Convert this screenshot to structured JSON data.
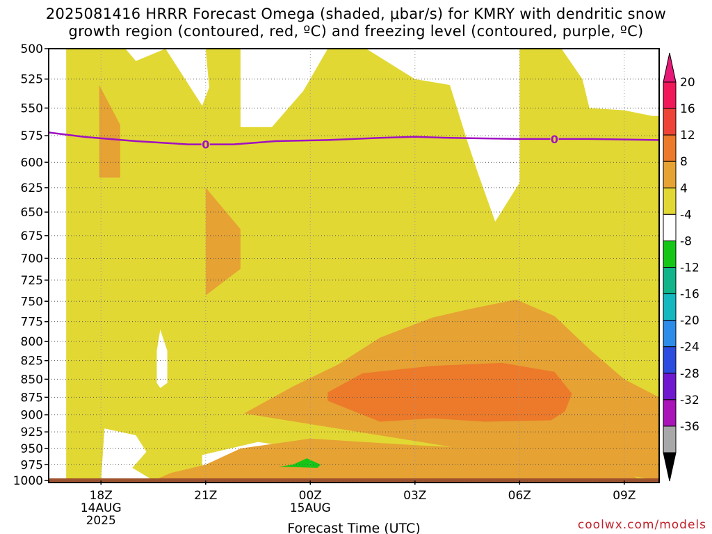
{
  "title_line1": "2025081416 HRRR Forecast Omega (shaded, μbar/s) for KMRY with dendritic snow",
  "title_line2": "growth region (contoured, red, ºC) and freezing level (contoured, purple, ºC)",
  "footer": "coolwx.com/models",
  "chart_data": {
    "type": "heatmap",
    "xlabel": "Forecast Time (UTC)",
    "ylabel": "",
    "x_ticks": [
      {
        "label": "18Z",
        "sub1": "14AUG",
        "sub2": "2025",
        "hour": 2
      },
      {
        "label": "21Z",
        "sub1": "",
        "sub2": "",
        "hour": 5
      },
      {
        "label": "00Z",
        "sub1": "15AUG",
        "sub2": "",
        "hour": 8
      },
      {
        "label": "03Z",
        "sub1": "",
        "sub2": "",
        "hour": 11
      },
      {
        "label": "06Z",
        "sub1": "",
        "sub2": "",
        "hour": 14
      },
      {
        "label": "09Z",
        "sub1": "",
        "sub2": "",
        "hour": 17
      }
    ],
    "x_range_hours": [
      0.5,
      18
    ],
    "y_ticks": [
      500,
      525,
      550,
      575,
      600,
      625,
      650,
      675,
      700,
      725,
      750,
      775,
      800,
      825,
      850,
      875,
      900,
      925,
      950,
      975,
      1000
    ],
    "y_range_hPa": [
      500,
      1000
    ],
    "y_scale": "log-pressure",
    "colorbar": {
      "labels": [
        "20",
        "16",
        "12",
        "8",
        "4",
        "-4",
        "-8",
        "-12",
        "-16",
        "-20",
        "-24",
        "-28",
        "-32",
        "-36"
      ],
      "colors": [
        "#f01858",
        "#ee4438",
        "#ec7a2a",
        "#e6a233",
        "#e2d834",
        "#ffffff",
        "#16c616",
        "#12b48a",
        "#16b8c0",
        "#2c8ce8",
        "#2c4ce0",
        "#7018d0",
        "#a814b8",
        "#a8a8a8"
      ],
      "top_arrow_color": "#e81878",
      "bottom_arrow_color": "#000000"
    },
    "freezing_level": {
      "label": "0",
      "points": [
        [
          0.5,
          572
        ],
        [
          1.5,
          576
        ],
        [
          3.0,
          580
        ],
        [
          4.5,
          583
        ],
        [
          5.0,
          583
        ],
        [
          5.8,
          583
        ],
        [
          7.0,
          580
        ],
        [
          8.5,
          579
        ],
        [
          10.0,
          577
        ],
        [
          11.0,
          576
        ],
        [
          12.0,
          577
        ],
        [
          14.0,
          578
        ],
        [
          16.0,
          578
        ],
        [
          18.0,
          579
        ]
      ],
      "label_positions": [
        [
          5.0,
          583
        ],
        [
          15.0,
          578
        ]
      ],
      "color": "#a010c0"
    },
    "shaded_regions": [
      {
        "level": "4 to 8",
        "color": "#e2d834",
        "polygon": [
          [
            1.0,
            500
          ],
          [
            18.0,
            500
          ],
          [
            18.0,
            1000
          ],
          [
            1.0,
            1000
          ]
        ]
      },
      {
        "level": "-4 to 4",
        "color": "#ffffff",
        "polygon": [
          [
            0.5,
            500
          ],
          [
            1.0,
            500
          ],
          [
            1.0,
            1000
          ],
          [
            0.5,
            1000
          ]
        ]
      },
      {
        "level": "-4 to 4",
        "color": "#ffffff",
        "polygon": [
          [
            2.7,
            500
          ],
          [
            3.0,
            510
          ],
          [
            3.85,
            500
          ]
        ]
      },
      {
        "level": "-4 to 4",
        "color": "#ffffff",
        "polygon": [
          [
            3.85,
            500
          ],
          [
            4.9,
            548
          ],
          [
            5.1,
            532
          ],
          [
            5.0,
            500
          ]
        ]
      },
      {
        "level": "-4 to 4",
        "color": "#ffffff",
        "polygon": [
          [
            6.0,
            567
          ],
          [
            6.9,
            567
          ],
          [
            7.8,
            535
          ],
          [
            8.5,
            500
          ],
          [
            6.0,
            500
          ]
        ]
      },
      {
        "level": "-4 to 4",
        "color": "#ffffff",
        "polygon": [
          [
            9.6,
            500
          ],
          [
            11.0,
            525
          ],
          [
            12.0,
            530
          ],
          [
            12.5,
            580
          ],
          [
            12.8,
            610
          ],
          [
            13.3,
            660
          ],
          [
            14.0,
            620
          ],
          [
            14.0,
            500
          ]
        ]
      },
      {
        "level": "-4 to 4",
        "color": "#ffffff",
        "polygon": [
          [
            15.2,
            500
          ],
          [
            15.8,
            525
          ],
          [
            16.0,
            550
          ],
          [
            17.0,
            552
          ],
          [
            17.8,
            557
          ],
          [
            18.0,
            557
          ],
          [
            18.0,
            500
          ]
        ]
      },
      {
        "level": "-4 to 4",
        "color": "#ffffff",
        "polygon": [
          [
            3.7,
            785
          ],
          [
            3.9,
            812
          ],
          [
            3.9,
            855
          ],
          [
            3.7,
            862
          ],
          [
            3.6,
            855
          ],
          [
            3.6,
            812
          ]
        ]
      },
      {
        "level": "-4 to 4",
        "color": "#ffffff",
        "polygon": [
          [
            0.5,
            900
          ],
          [
            1.0,
            905
          ],
          [
            0.9,
            950
          ],
          [
            1.0,
            1000
          ],
          [
            0.5,
            1000
          ]
        ]
      },
      {
        "level": "-4 to 4",
        "color": "#ffffff",
        "polygon": [
          [
            2.1,
            920
          ],
          [
            3.0,
            930
          ],
          [
            3.3,
            955
          ],
          [
            2.9,
            980
          ],
          [
            3.5,
            1000
          ],
          [
            2.0,
            1000
          ]
        ]
      },
      {
        "level": "-4 to 4",
        "color": "#ffffff",
        "polygon": [
          [
            4.9,
            960
          ],
          [
            6.5,
            940
          ],
          [
            8.0,
            952
          ],
          [
            9.0,
            965
          ],
          [
            9.5,
            985
          ],
          [
            9.0,
            1000
          ],
          [
            5.5,
            1000
          ],
          [
            4.9,
            985
          ]
        ]
      },
      {
        "level": "8 to 12",
        "color": "#e6a233",
        "polygon": [
          [
            1.95,
            530
          ],
          [
            2.55,
            565
          ],
          [
            2.55,
            615
          ],
          [
            1.95,
            615
          ]
        ]
      },
      {
        "level": "8 to 12",
        "color": "#e6a233",
        "polygon": [
          [
            5.0,
            625
          ],
          [
            6.0,
            668
          ],
          [
            6.0,
            712
          ],
          [
            5.0,
            743
          ]
        ]
      },
      {
        "level": "8 to 12",
        "color": "#e6a233",
        "polygon": [
          [
            6.1,
            898
          ],
          [
            7.5,
            860
          ],
          [
            8.8,
            830
          ],
          [
            10.0,
            795
          ],
          [
            11.5,
            770
          ],
          [
            12.5,
            760
          ],
          [
            13.9,
            748
          ],
          [
            15.0,
            768
          ],
          [
            16.0,
            810
          ],
          [
            17.0,
            850
          ],
          [
            18.0,
            875
          ],
          [
            18.0,
            1000
          ],
          [
            3.5,
            1000
          ],
          [
            4.0,
            988
          ],
          [
            5.0,
            975
          ],
          [
            6.0,
            950
          ],
          [
            8.0,
            935
          ],
          [
            11.0,
            945
          ],
          [
            15.0,
            955
          ],
          [
            16.0,
            965
          ],
          [
            17.0,
            985
          ],
          [
            17.5,
            1000
          ],
          [
            18.0,
            1000
          ]
        ]
      },
      {
        "level": "12 to 16",
        "color": "#ec7a2a",
        "polygon": [
          [
            8.5,
            868
          ],
          [
            9.5,
            842
          ],
          [
            11.5,
            832
          ],
          [
            13.5,
            828
          ],
          [
            15.0,
            840
          ],
          [
            15.5,
            870
          ],
          [
            15.3,
            895
          ],
          [
            14.9,
            908
          ],
          [
            13.0,
            910
          ],
          [
            11.5,
            905
          ],
          [
            10.0,
            910
          ],
          [
            8.5,
            880
          ]
        ]
      },
      {
        "level": "-8 to -4",
        "color": "#16c616",
        "polygon": [
          [
            7.1,
            978
          ],
          [
            7.5,
            975
          ],
          [
            7.9,
            965
          ],
          [
            8.3,
            975
          ],
          [
            8.2,
            980
          ]
        ]
      }
    ]
  }
}
